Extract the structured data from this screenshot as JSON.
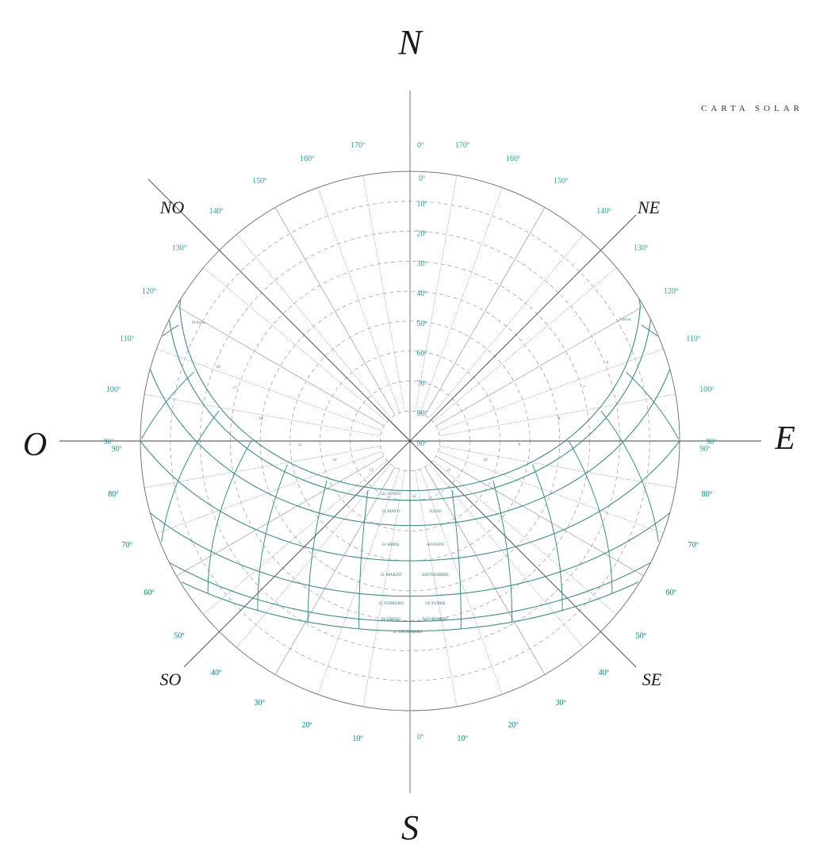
{
  "title": "CARTA SOLAR",
  "cardinals": {
    "N": "N",
    "S": "S",
    "E": "E",
    "O": "O",
    "NE": "NE",
    "NO": "NO",
    "SE": "SE",
    "SO": "SO"
  },
  "azimuth_labels_north": [
    "0º",
    "10º",
    "20º",
    "30º",
    "40º",
    "50º",
    "60º",
    "70º",
    "80º",
    "90º",
    "100º",
    "110º",
    "120º",
    "130º",
    "140º",
    "150º",
    "160º",
    "170º"
  ],
  "azimuth_labels_south": [
    "0º",
    "10º",
    "20º",
    "30º",
    "40º",
    "50º",
    "60º",
    "70º",
    "80º",
    "90º"
  ],
  "altitude_labels": [
    "0º",
    "10º",
    "20º",
    "30º",
    "40º",
    "50º",
    "60º",
    "70º",
    "80º",
    "90º"
  ],
  "month_labels": {
    "left": [
      "21 JUNIO",
      "21 MAYO",
      "21 ABRIL",
      "21 MARZO",
      "21 FEBRERO",
      "21 ENERO",
      "21 DICIEMBRE"
    ],
    "right": [
      "JULIO",
      "AGOSTO",
      "SEPTIEMBRE",
      "OCTUBRE",
      "NOVIEMBRE"
    ]
  },
  "hour_labels": {
    "afternoon": [
      "19 horas",
      "18",
      "17",
      "16",
      "15",
      "14",
      "13"
    ],
    "noon": "12",
    "morning": [
      "11",
      "10",
      "9",
      "8",
      "7",
      "6",
      "5 horas"
    ]
  },
  "colors": {
    "accent": "#2aa198",
    "curve": "#3d8c85",
    "grid": "#9a9a9a",
    "axis": "#777777"
  }
}
